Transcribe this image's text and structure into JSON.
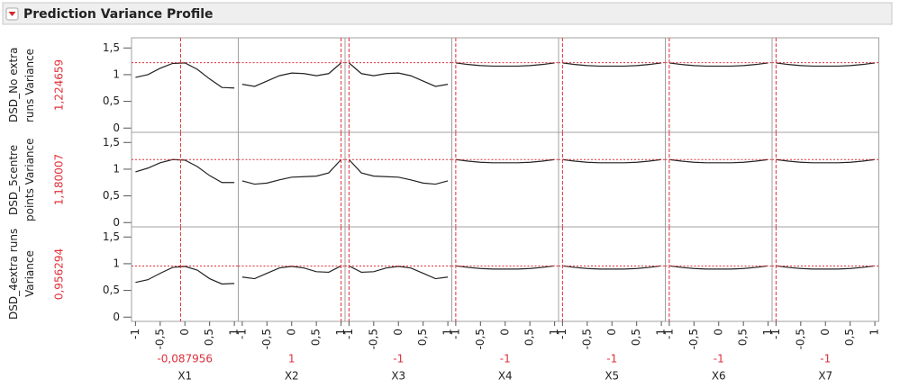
{
  "chart_data": {
    "type": "profiler",
    "title": "Prediction Variance Profile",
    "x": [
      -1,
      -0.75,
      -0.5,
      -0.25,
      0,
      0.25,
      0.5,
      0.75,
      1
    ],
    "xlim": [
      -1.08,
      1.08
    ],
    "xticks": [
      -1,
      {
        "value": -0.5,
        "label": "-0,5"
      },
      0,
      {
        "value": 0.5,
        "label": "0,5"
      },
      1
    ],
    "ylim": [
      -0.08,
      1.69
    ],
    "yticks": [
      0,
      {
        "value": 0.5,
        "label": "0,5"
      },
      1,
      {
        "value": 1.5,
        "label": "1,5"
      }
    ],
    "line_color": "#222222",
    "reference_color": "#e0303a",
    "factors": [
      {
        "name": "X1",
        "current": {
          "value": -0.087956,
          "label": "-0,087956"
        }
      },
      {
        "name": "X2",
        "current": 1
      },
      {
        "name": "X3",
        "current": -1
      },
      {
        "name": "X4",
        "current": -1
      },
      {
        "name": "X5",
        "current": -1
      },
      {
        "name": "X6",
        "current": -1
      },
      {
        "name": "X7",
        "current": -1
      }
    ],
    "responses": [
      {
        "name": "DSD_No extra runs Variance",
        "current": {
          "value": 1.224659,
          "label": "1,224659"
        },
        "curves": [
          [
            0.95,
            1.0,
            1.12,
            1.21,
            1.22,
            1.1,
            0.92,
            0.76,
            0.75
          ],
          [
            0.82,
            0.78,
            0.88,
            0.98,
            1.03,
            1.02,
            0.98,
            1.02,
            1.22
          ],
          [
            1.22,
            1.02,
            0.98,
            1.02,
            1.03,
            0.98,
            0.88,
            0.78,
            0.82
          ],
          [
            1.22,
            1.19,
            1.17,
            1.16,
            1.16,
            1.16,
            1.17,
            1.19,
            1.22
          ],
          [
            1.22,
            1.19,
            1.17,
            1.16,
            1.16,
            1.16,
            1.17,
            1.19,
            1.22
          ],
          [
            1.22,
            1.19,
            1.17,
            1.16,
            1.16,
            1.16,
            1.17,
            1.19,
            1.22
          ],
          [
            1.22,
            1.19,
            1.17,
            1.16,
            1.16,
            1.16,
            1.17,
            1.19,
            1.22
          ]
        ]
      },
      {
        "name": "DSD_5centre points Variance",
        "current": {
          "value": 1.180007,
          "label": "1,180007"
        },
        "curves": [
          [
            0.95,
            1.02,
            1.12,
            1.18,
            1.17,
            1.05,
            0.88,
            0.75,
            0.75
          ],
          [
            0.78,
            0.72,
            0.74,
            0.8,
            0.85,
            0.86,
            0.87,
            0.93,
            1.18
          ],
          [
            1.18,
            0.93,
            0.87,
            0.86,
            0.85,
            0.8,
            0.74,
            0.72,
            0.78
          ],
          [
            1.18,
            1.15,
            1.13,
            1.12,
            1.12,
            1.12,
            1.13,
            1.15,
            1.18
          ],
          [
            1.18,
            1.15,
            1.13,
            1.12,
            1.12,
            1.12,
            1.13,
            1.15,
            1.18
          ],
          [
            1.18,
            1.15,
            1.13,
            1.12,
            1.12,
            1.12,
            1.13,
            1.15,
            1.18
          ],
          [
            1.18,
            1.15,
            1.13,
            1.12,
            1.12,
            1.12,
            1.13,
            1.15,
            1.18
          ]
        ]
      },
      {
        "name": "DSD_4extra runs Variance",
        "current": {
          "value": 0.956294,
          "label": "0,956294"
        },
        "curves": [
          [
            0.65,
            0.7,
            0.82,
            0.93,
            0.95,
            0.88,
            0.72,
            0.62,
            0.63
          ],
          [
            0.75,
            0.72,
            0.82,
            0.92,
            0.95,
            0.92,
            0.85,
            0.84,
            0.96
          ],
          [
            0.96,
            0.84,
            0.85,
            0.92,
            0.95,
            0.92,
            0.82,
            0.72,
            0.75
          ],
          [
            0.96,
            0.93,
            0.91,
            0.9,
            0.9,
            0.9,
            0.91,
            0.93,
            0.96
          ],
          [
            0.96,
            0.93,
            0.91,
            0.9,
            0.9,
            0.9,
            0.91,
            0.93,
            0.96
          ],
          [
            0.96,
            0.93,
            0.91,
            0.9,
            0.9,
            0.9,
            0.91,
            0.93,
            0.96
          ],
          [
            0.96,
            0.93,
            0.91,
            0.9,
            0.9,
            0.9,
            0.91,
            0.93,
            0.96
          ]
        ]
      }
    ]
  }
}
